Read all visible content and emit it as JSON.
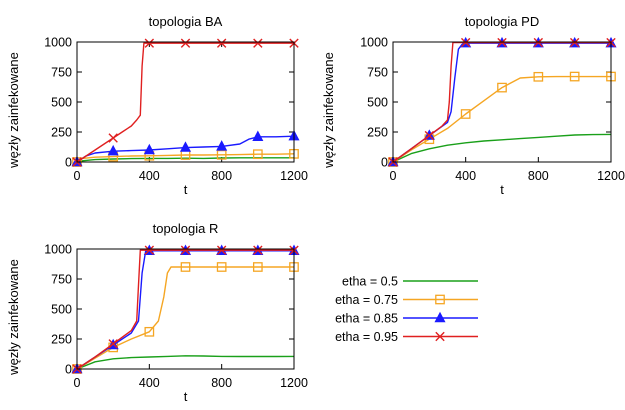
{
  "chart_data": [
    {
      "type": "line",
      "title": "topologia BA",
      "xlabel": "t",
      "ylabel": "węzły zainfekowane",
      "xlim": [
        0,
        1200
      ],
      "ylim": [
        0,
        1000
      ],
      "xticks": [
        "0",
        "400",
        "800",
        "1200"
      ],
      "yticks": [
        "0",
        "250",
        "500",
        "750",
        "1000"
      ],
      "series": [
        {
          "name": "etha = 0.5",
          "color": "#1aa01a",
          "marker": "none",
          "points": [
            [
              0,
              0
            ],
            [
              30,
              10
            ],
            [
              100,
              20
            ],
            [
              200,
              25
            ],
            [
              300,
              28
            ],
            [
              400,
              30
            ],
            [
              500,
              30
            ],
            [
              600,
              32
            ],
            [
              700,
              30
            ],
            [
              800,
              33
            ],
            [
              900,
              35
            ],
            [
              1000,
              35
            ],
            [
              1100,
              35
            ],
            [
              1200,
              35
            ]
          ]
        },
        {
          "name": "etha = 0.75",
          "color": "#f5a623",
          "marker": "square",
          "points": [
            [
              0,
              0
            ],
            [
              30,
              30
            ],
            [
              100,
              40
            ],
            [
              200,
              45
            ],
            [
              300,
              50
            ],
            [
              400,
              52
            ],
            [
              500,
              55
            ],
            [
              600,
              58
            ],
            [
              700,
              58
            ],
            [
              800,
              60
            ],
            [
              900,
              62
            ],
            [
              1000,
              65
            ],
            [
              1100,
              65
            ],
            [
              1200,
              68
            ]
          ]
        },
        {
          "name": "etha = 0.85",
          "color": "#1a1aff",
          "marker": "triangle",
          "points": [
            [
              0,
              0
            ],
            [
              50,
              50
            ],
            [
              100,
              75
            ],
            [
              200,
              90
            ],
            [
              300,
              95
            ],
            [
              400,
              100
            ],
            [
              500,
              110
            ],
            [
              600,
              120
            ],
            [
              700,
              125
            ],
            [
              800,
              130
            ],
            [
              900,
              150
            ],
            [
              950,
              190
            ],
            [
              1000,
              210
            ],
            [
              1100,
              210
            ],
            [
              1200,
              215
            ]
          ]
        },
        {
          "name": "etha = 0.95",
          "color": "#e02020",
          "marker": "x",
          "points": [
            [
              0,
              0
            ],
            [
              100,
              100
            ],
            [
              200,
              200
            ],
            [
              250,
              250
            ],
            [
              300,
              300
            ],
            [
              330,
              350
            ],
            [
              350,
              390
            ],
            [
              360,
              800
            ],
            [
              370,
              990
            ],
            [
              400,
              990
            ],
            [
              500,
              990
            ],
            [
              600,
              990
            ],
            [
              700,
              990
            ],
            [
              800,
              990
            ],
            [
              900,
              990
            ],
            [
              1000,
              990
            ],
            [
              1100,
              990
            ],
            [
              1200,
              990
            ]
          ]
        }
      ],
      "markers_at": [
        0,
        200,
        400,
        600,
        800,
        1000,
        1200
      ]
    },
    {
      "type": "line",
      "title": "topologia PD",
      "xlabel": "t",
      "ylabel": "węzły zainfekowane",
      "xlim": [
        0,
        1200
      ],
      "ylim": [
        0,
        1000
      ],
      "xticks": [
        "0",
        "400",
        "800",
        "1200"
      ],
      "yticks": [
        "0",
        "250",
        "500",
        "750",
        "1000"
      ],
      "series": [
        {
          "name": "etha = 0.5",
          "color": "#1aa01a",
          "marker": "none",
          "points": [
            [
              0,
              0
            ],
            [
              100,
              70
            ],
            [
              200,
              110
            ],
            [
              300,
              140
            ],
            [
              400,
              160
            ],
            [
              500,
              175
            ],
            [
              600,
              185
            ],
            [
              700,
              195
            ],
            [
              800,
              205
            ],
            [
              900,
              215
            ],
            [
              1000,
              225
            ],
            [
              1100,
              228
            ],
            [
              1200,
              230
            ]
          ]
        },
        {
          "name": "etha = 0.75",
          "color": "#f5a623",
          "marker": "square",
          "points": [
            [
              0,
              0
            ],
            [
              100,
              100
            ],
            [
              200,
              190
            ],
            [
              300,
              280
            ],
            [
              400,
              400
            ],
            [
              500,
              510
            ],
            [
              600,
              620
            ],
            [
              700,
              700
            ],
            [
              800,
              710
            ],
            [
              900,
              712
            ],
            [
              1000,
              712
            ],
            [
              1100,
              712
            ],
            [
              1200,
              712
            ]
          ]
        },
        {
          "name": "etha = 0.85",
          "color": "#1a1aff",
          "marker": "triangle",
          "points": [
            [
              0,
              0
            ],
            [
              100,
              110
            ],
            [
              200,
              220
            ],
            [
              300,
              330
            ],
            [
              320,
              420
            ],
            [
              340,
              700
            ],
            [
              360,
              940
            ],
            [
              380,
              980
            ],
            [
              400,
              990
            ],
            [
              500,
              990
            ],
            [
              600,
              990
            ],
            [
              700,
              990
            ],
            [
              800,
              990
            ],
            [
              900,
              990
            ],
            [
              1000,
              990
            ],
            [
              1100,
              990
            ],
            [
              1200,
              990
            ]
          ]
        },
        {
          "name": "etha = 0.95",
          "color": "#e02020",
          "marker": "x",
          "points": [
            [
              0,
              0
            ],
            [
              100,
              110
            ],
            [
              200,
              220
            ],
            [
              270,
              300
            ],
            [
              300,
              350
            ],
            [
              310,
              500
            ],
            [
              320,
              800
            ],
            [
              330,
              995
            ],
            [
              400,
              995
            ],
            [
              500,
              995
            ],
            [
              600,
              995
            ],
            [
              700,
              995
            ],
            [
              800,
              995
            ],
            [
              900,
              995
            ],
            [
              1000,
              995
            ],
            [
              1100,
              995
            ],
            [
              1200,
              995
            ]
          ]
        }
      ],
      "markers_at": [
        0,
        200,
        400,
        600,
        800,
        1000,
        1200
      ]
    },
    {
      "type": "line",
      "title": "topologia R",
      "xlabel": "t",
      "ylabel": "węzły zainfekowane",
      "xlim": [
        0,
        1200
      ],
      "ylim": [
        0,
        1000
      ],
      "xticks": [
        "0",
        "400",
        "800",
        "1200"
      ],
      "yticks": [
        "0",
        "250",
        "500",
        "750",
        "1000"
      ],
      "series": [
        {
          "name": "etha = 0.5",
          "color": "#1aa01a",
          "marker": "none",
          "points": [
            [
              0,
              0
            ],
            [
              100,
              60
            ],
            [
              200,
              85
            ],
            [
              300,
              95
            ],
            [
              400,
              100
            ],
            [
              500,
              105
            ],
            [
              600,
              110
            ],
            [
              700,
              108
            ],
            [
              800,
              105
            ],
            [
              900,
              104
            ],
            [
              1000,
              104
            ],
            [
              1100,
              104
            ],
            [
              1200,
              105
            ]
          ]
        },
        {
          "name": "etha = 0.75",
          "color": "#f5a623",
          "marker": "square",
          "points": [
            [
              0,
              0
            ],
            [
              100,
              90
            ],
            [
              200,
              180
            ],
            [
              300,
              250
            ],
            [
              400,
              310
            ],
            [
              450,
              400
            ],
            [
              480,
              600
            ],
            [
              500,
              800
            ],
            [
              520,
              850
            ],
            [
              600,
              850
            ],
            [
              700,
              850
            ],
            [
              800,
              850
            ],
            [
              900,
              850
            ],
            [
              1000,
              850
            ],
            [
              1100,
              850
            ],
            [
              1200,
              850
            ]
          ]
        },
        {
          "name": "etha = 0.85",
          "color": "#1a1aff",
          "marker": "triangle",
          "points": [
            [
              0,
              0
            ],
            [
              100,
              100
            ],
            [
              200,
              200
            ],
            [
              300,
              300
            ],
            [
              340,
              400
            ],
            [
              360,
              800
            ],
            [
              380,
              985
            ],
            [
              400,
              985
            ],
            [
              500,
              985
            ],
            [
              600,
              985
            ],
            [
              700,
              985
            ],
            [
              800,
              985
            ],
            [
              900,
              985
            ],
            [
              1000,
              985
            ],
            [
              1100,
              985
            ],
            [
              1200,
              985
            ]
          ]
        },
        {
          "name": "etha = 0.95",
          "color": "#e02020",
          "marker": "x",
          "points": [
            [
              0,
              0
            ],
            [
              100,
              100
            ],
            [
              200,
              210
            ],
            [
              300,
              320
            ],
            [
              330,
              400
            ],
            [
              340,
              700
            ],
            [
              350,
              990
            ],
            [
              400,
              990
            ],
            [
              500,
              990
            ],
            [
              600,
              990
            ],
            [
              700,
              990
            ],
            [
              800,
              990
            ],
            [
              900,
              990
            ],
            [
              1000,
              990
            ],
            [
              1100,
              990
            ],
            [
              1200,
              990
            ]
          ]
        }
      ],
      "markers_at": [
        0,
        200,
        400,
        600,
        800,
        1000,
        1200
      ]
    }
  ],
  "legend": {
    "entries": [
      {
        "label": "etha = 0.5",
        "color": "#1aa01a",
        "marker": "none"
      },
      {
        "label": "etha = 0.75",
        "color": "#f5a623",
        "marker": "square"
      },
      {
        "label": "etha = 0.85",
        "color": "#1a1aff",
        "marker": "triangle"
      },
      {
        "label": "etha = 0.95",
        "color": "#e02020",
        "marker": "x"
      }
    ]
  }
}
